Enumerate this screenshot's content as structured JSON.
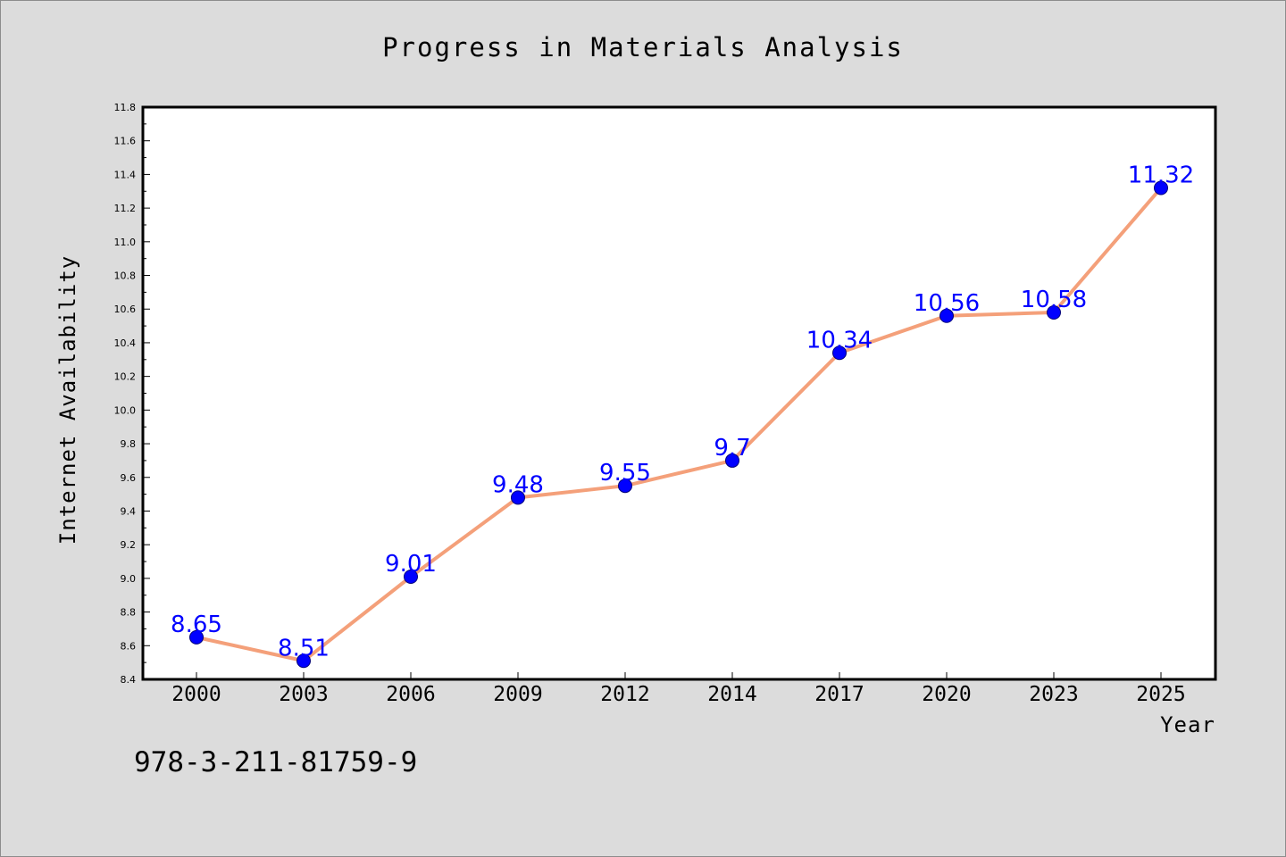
{
  "chart_data": {
    "type": "line",
    "title": "Progress in Materials Analysis",
    "xlabel": "Year",
    "ylabel": "Internet Availability",
    "categories": [
      "2000",
      "2003",
      "2006",
      "2009",
      "2012",
      "2014",
      "2017",
      "2020",
      "2023",
      "2025"
    ],
    "series": [
      {
        "values": [
          8.65,
          8.51,
          9.01,
          9.48,
          9.55,
          9.7,
          10.34,
          10.56,
          10.58,
          11.32
        ],
        "data_labels": [
          "8.65",
          "8.51",
          "9.01",
          "9.48",
          "9.55",
          "9.7",
          "10.34",
          "10.56",
          "10.58",
          "11.32"
        ],
        "line_color": "#f4a07a",
        "marker_color": "#0000ff"
      }
    ],
    "ylim": [
      8.4,
      11.8
    ],
    "yticks": [
      "8.4",
      "8.6",
      "8.8",
      "9.0",
      "9.2",
      "9.4",
      "9.6",
      "9.8",
      "10.0",
      "10.2",
      "10.4",
      "10.6",
      "10.8",
      "11.0",
      "11.2",
      "11.4",
      "11.6",
      "11.8"
    ],
    "grid": false,
    "legend": "none",
    "annotation": "978-3-211-81759-9",
    "background_color": "#dcdcdc",
    "plot_background_color": "#ffffff"
  }
}
